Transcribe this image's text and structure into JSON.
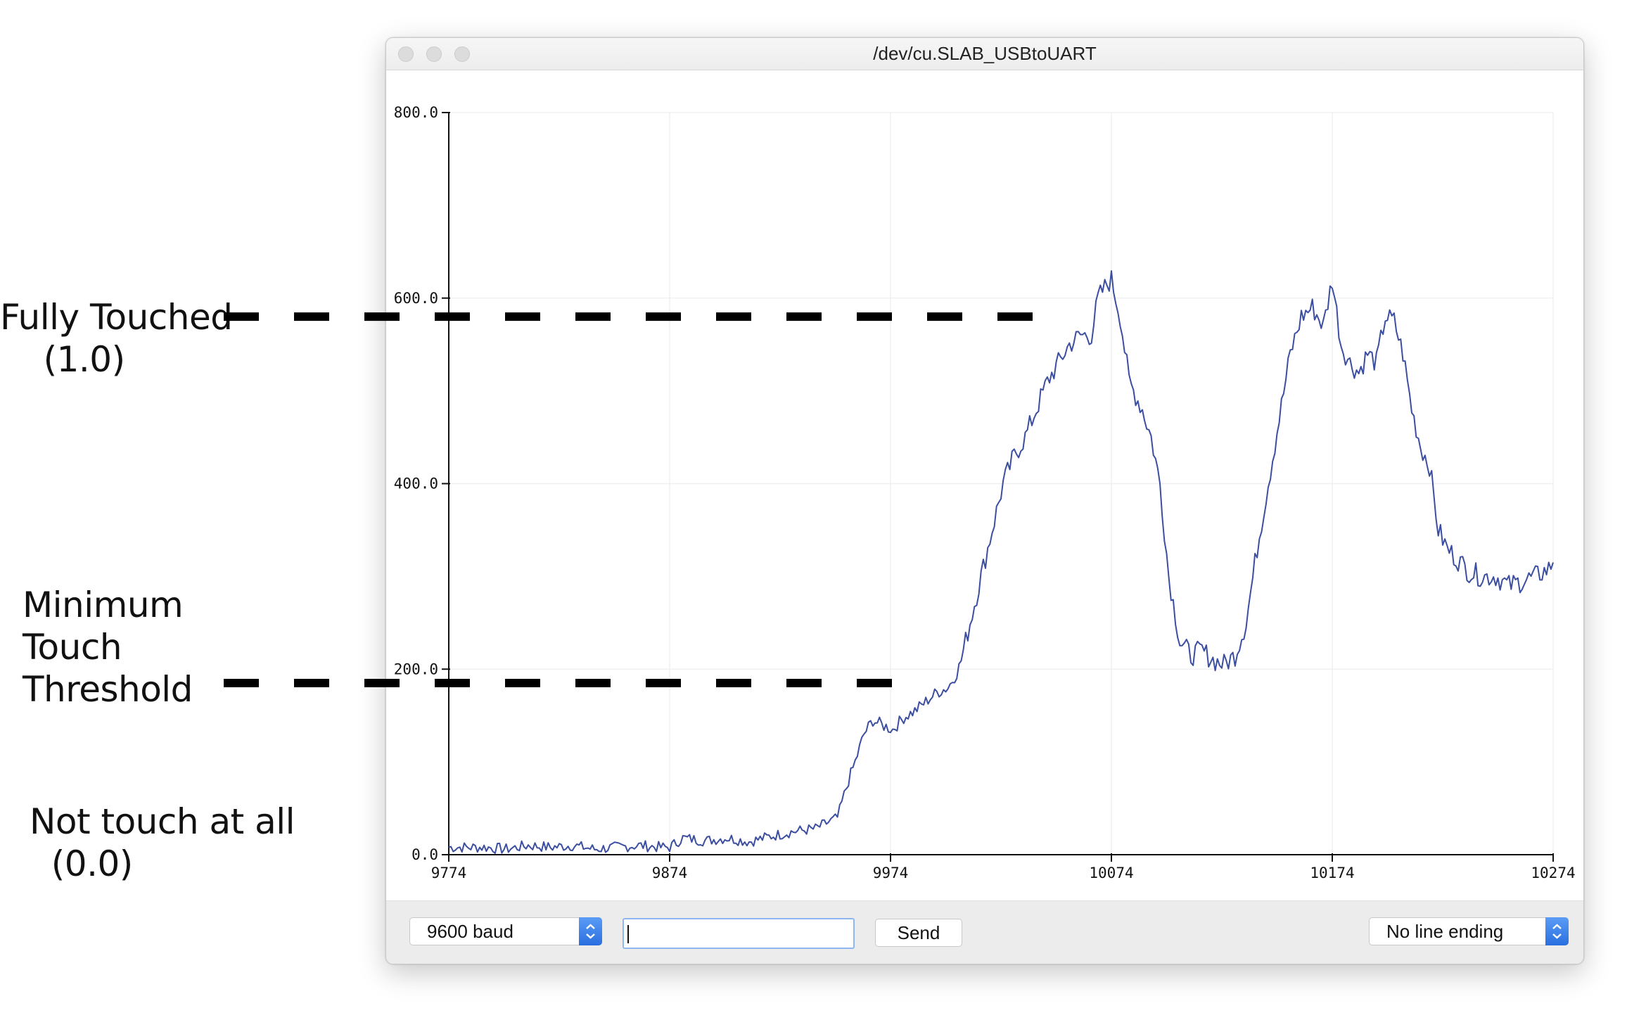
{
  "window": {
    "title": "/dev/cu.SLAB_USBtoUART"
  },
  "annotations": {
    "fully_touched": "Fully Touched\n    (1.0)",
    "minimum_touch": "Minimum\nTouch\nThreshold",
    "not_touch": "Not touch at all\n  (0.0)"
  },
  "bottom_bar": {
    "baud": "9600 baud",
    "input_value": "",
    "send": "Send",
    "line_ending": "No line ending"
  },
  "colors": {
    "series": "#3b4ea0",
    "accent": "#2a6fe0"
  },
  "chart_data": {
    "type": "line",
    "title": "",
    "xlabel": "",
    "ylabel": "",
    "xlim": [
      9774,
      10274
    ],
    "ylim": [
      0,
      800
    ],
    "x_ticks": [
      "9774",
      "9874",
      "9974",
      "10074",
      "10174",
      "10274"
    ],
    "y_ticks": [
      "0.0",
      "200.0",
      "400.0",
      "600.0",
      "800.0"
    ],
    "grid": true,
    "annotation_lines": [
      {
        "label": "Fully Touched (1.0)",
        "y": 580
      },
      {
        "label": "Minimum Touch Threshold",
        "y": 185
      }
    ],
    "series": [
      {
        "x": [
          9774,
          9790,
          9800,
          9810,
          9820,
          9830,
          9840,
          9850,
          9860,
          9870,
          9874,
          9880,
          9890,
          9900,
          9910,
          9920,
          9930,
          9940,
          9950,
          9955,
          9958,
          9962,
          9966,
          9970,
          9975,
          9980,
          9985,
          9990,
          9995,
          10000,
          10005,
          10010,
          10015,
          10020,
          10025,
          10030,
          10035,
          10040,
          10045,
          10050,
          10055,
          10060,
          10065,
          10068,
          10072,
          10074,
          10078,
          10082,
          10088,
          10092,
          10096,
          10100,
          10105,
          10110,
          10115,
          10120,
          10125,
          10130,
          10135,
          10140,
          10145,
          10150,
          10155,
          10160,
          10165,
          10170,
          10174,
          10178,
          10182,
          10186,
          10190,
          10194,
          10198,
          10202,
          10206,
          10210,
          10214,
          10218,
          10222,
          10226,
          10230,
          10236,
          10242,
          10248,
          10254,
          10260,
          10266,
          10272,
          10274
        ],
        "y": [
          8,
          8,
          6,
          10,
          8,
          10,
          6,
          8,
          10,
          8,
          8,
          18,
          15,
          18,
          14,
          20,
          25,
          28,
          40,
          80,
          100,
          130,
          145,
          140,
          135,
          148,
          155,
          165,
          175,
          180,
          200,
          250,
          300,
          350,
          400,
          430,
          450,
          480,
          510,
          530,
          550,
          560,
          560,
          600,
          615,
          620,
          580,
          510,
          480,
          450,
          400,
          300,
          230,
          215,
          220,
          210,
          205,
          215,
          250,
          330,
          400,
          470,
          540,
          580,
          590,
          570,
          620,
          550,
          530,
          520,
          540,
          530,
          580,
          575,
          540,
          480,
          440,
          420,
          350,
          330,
          320,
          305,
          300,
          300,
          290,
          295,
          300,
          308,
          315
        ]
      }
    ]
  }
}
